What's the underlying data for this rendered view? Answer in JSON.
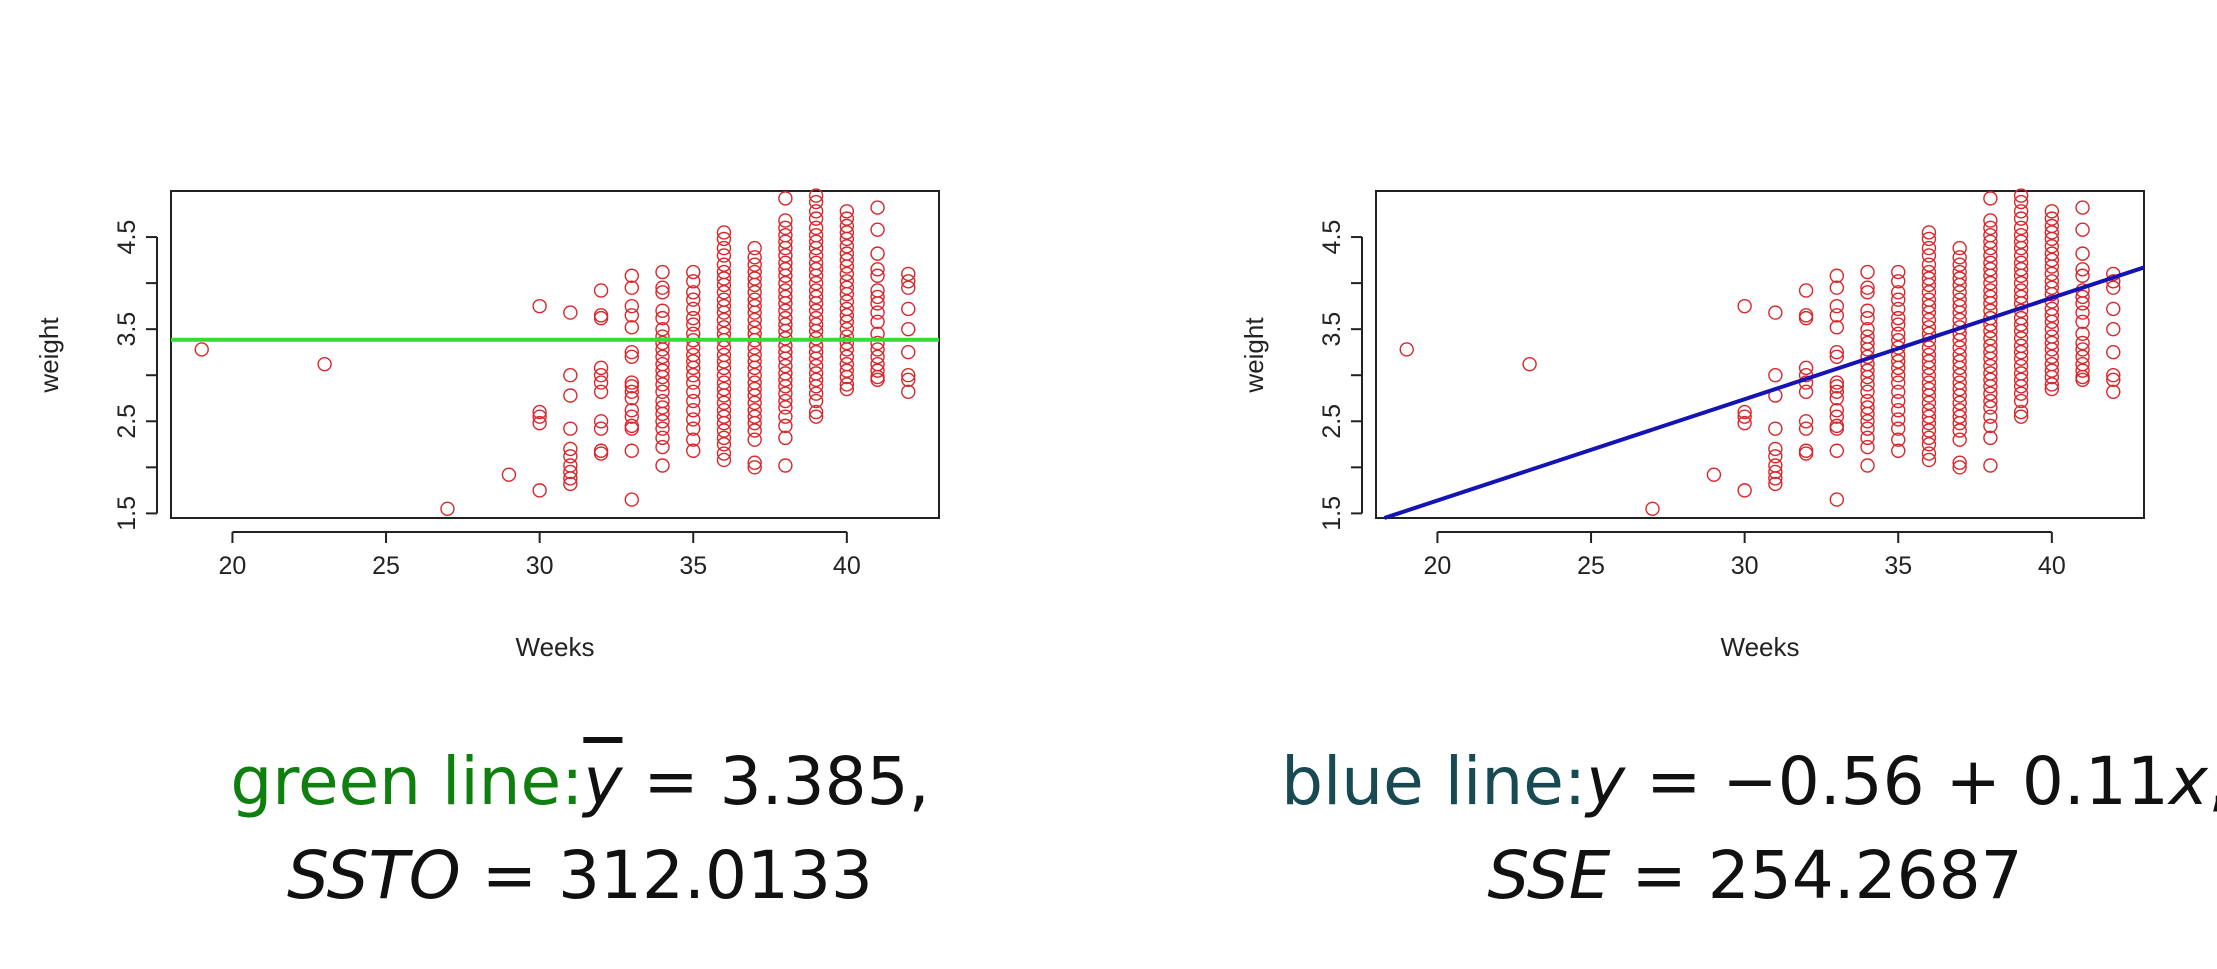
{
  "colors": {
    "points": "#d9262b",
    "mean_line": "#33dd33",
    "fit_line": "#1414b4",
    "axis": "#222222",
    "label_green": "#0f7f0f",
    "label_blue": "#174a52"
  },
  "chart_data": [
    {
      "type": "scatter",
      "title": "",
      "xlabel": "Weeks",
      "ylabel": "weight",
      "xlim": [
        18,
        43
      ],
      "ylim": [
        1.45,
        5.0
      ],
      "xticks": [
        "20",
        "25",
        "30",
        "35",
        "40"
      ],
      "yticks": [
        "1.5",
        "2.5",
        "3.5",
        "4.5"
      ],
      "minor_yticks": [
        2.0,
        3.0,
        4.0
      ],
      "grid": false,
      "overlay_line": {
        "kind": "horizontal",
        "y": 3.385,
        "color": "green"
      },
      "points_summary": "Birth weight vs gestation weeks; dense vertical strips at 36-41 weeks, isolated points at 19, 23, 27 weeks"
    },
    {
      "type": "scatter",
      "title": "",
      "xlabel": "Weeks",
      "ylabel": "weight",
      "xlim": [
        18,
        43
      ],
      "ylim": [
        1.45,
        5.0
      ],
      "xticks": [
        "20",
        "25",
        "30",
        "35",
        "40"
      ],
      "yticks": [
        "1.5",
        "2.5",
        "3.5",
        "4.5"
      ],
      "minor_yticks": [
        2.0,
        3.0,
        4.0
      ],
      "grid": false,
      "overlay_line": {
        "kind": "regression",
        "intercept": -0.56,
        "slope": 0.11,
        "color": "blue"
      },
      "points_summary": "Same data as left panel"
    }
  ],
  "points": [
    [
      19,
      3.28
    ],
    [
      23,
      3.12
    ],
    [
      27,
      1.55
    ],
    [
      29,
      1.92
    ],
    [
      30,
      3.75
    ],
    [
      30,
      2.6
    ],
    [
      30,
      2.55
    ],
    [
      30,
      2.48
    ],
    [
      30,
      1.75
    ],
    [
      31,
      3.68
    ],
    [
      31,
      3.0
    ],
    [
      31,
      2.78
    ],
    [
      31,
      2.42
    ],
    [
      31,
      2.2
    ],
    [
      31,
      2.12
    ],
    [
      31,
      2.02
    ],
    [
      31,
      1.95
    ],
    [
      31,
      1.88
    ],
    [
      31,
      1.82
    ],
    [
      32,
      3.92
    ],
    [
      32,
      3.65
    ],
    [
      32,
      3.62
    ],
    [
      32,
      3.08
    ],
    [
      32,
      3.0
    ],
    [
      32,
      2.92
    ],
    [
      32,
      2.82
    ],
    [
      32,
      2.5
    ],
    [
      32,
      2.42
    ],
    [
      32,
      2.18
    ],
    [
      32,
      2.15
    ],
    [
      33,
      4.08
    ],
    [
      33,
      3.95
    ],
    [
      33,
      3.75
    ],
    [
      33,
      3.65
    ],
    [
      33,
      3.52
    ],
    [
      33,
      3.25
    ],
    [
      33,
      3.2
    ],
    [
      33,
      2.92
    ],
    [
      33,
      2.88
    ],
    [
      33,
      2.82
    ],
    [
      33,
      2.75
    ],
    [
      33,
      2.62
    ],
    [
      33,
      2.55
    ],
    [
      33,
      2.45
    ],
    [
      33,
      2.42
    ],
    [
      33,
      2.18
    ],
    [
      33,
      1.65
    ],
    [
      34,
      4.12
    ],
    [
      34,
      3.95
    ],
    [
      34,
      3.9
    ],
    [
      34,
      3.7
    ],
    [
      34,
      3.62
    ],
    [
      34,
      3.5
    ],
    [
      34,
      3.42
    ],
    [
      34,
      3.35
    ],
    [
      34,
      3.28
    ],
    [
      34,
      3.2
    ],
    [
      34,
      3.12
    ],
    [
      34,
      3.05
    ],
    [
      34,
      2.98
    ],
    [
      34,
      2.9
    ],
    [
      34,
      2.82
    ],
    [
      34,
      2.72
    ],
    [
      34,
      2.65
    ],
    [
      34,
      2.58
    ],
    [
      34,
      2.5
    ],
    [
      34,
      2.42
    ],
    [
      34,
      2.32
    ],
    [
      34,
      2.22
    ],
    [
      34,
      2.02
    ],
    [
      35,
      4.12
    ],
    [
      35,
      4.02
    ],
    [
      35,
      3.9
    ],
    [
      35,
      3.82
    ],
    [
      35,
      3.72
    ],
    [
      35,
      3.62
    ],
    [
      35,
      3.55
    ],
    [
      35,
      3.45
    ],
    [
      35,
      3.38
    ],
    [
      35,
      3.3
    ],
    [
      35,
      3.22
    ],
    [
      35,
      3.15
    ],
    [
      35,
      3.08
    ],
    [
      35,
      3.0
    ],
    [
      35,
      2.92
    ],
    [
      35,
      2.82
    ],
    [
      35,
      2.72
    ],
    [
      35,
      2.62
    ],
    [
      35,
      2.52
    ],
    [
      35,
      2.42
    ],
    [
      35,
      2.3
    ],
    [
      35,
      2.18
    ],
    [
      36,
      4.55
    ],
    [
      36,
      4.48
    ],
    [
      36,
      4.38
    ],
    [
      36,
      4.3
    ],
    [
      36,
      4.2
    ],
    [
      36,
      4.12
    ],
    [
      36,
      4.05
    ],
    [
      36,
      3.98
    ],
    [
      36,
      3.9
    ],
    [
      36,
      3.82
    ],
    [
      36,
      3.75
    ],
    [
      36,
      3.68
    ],
    [
      36,
      3.6
    ],
    [
      36,
      3.52
    ],
    [
      36,
      3.45
    ],
    [
      36,
      3.38
    ],
    [
      36,
      3.3
    ],
    [
      36,
      3.22
    ],
    [
      36,
      3.15
    ],
    [
      36,
      3.08
    ],
    [
      36,
      3.0
    ],
    [
      36,
      2.92
    ],
    [
      36,
      2.85
    ],
    [
      36,
      2.78
    ],
    [
      36,
      2.7
    ],
    [
      36,
      2.62
    ],
    [
      36,
      2.55
    ],
    [
      36,
      2.48
    ],
    [
      36,
      2.4
    ],
    [
      36,
      2.32
    ],
    [
      36,
      2.25
    ],
    [
      36,
      2.15
    ],
    [
      36,
      2.08
    ],
    [
      37,
      4.38
    ],
    [
      37,
      4.28
    ],
    [
      37,
      4.2
    ],
    [
      37,
      4.12
    ],
    [
      37,
      4.05
    ],
    [
      37,
      3.98
    ],
    [
      37,
      3.9
    ],
    [
      37,
      3.82
    ],
    [
      37,
      3.75
    ],
    [
      37,
      3.68
    ],
    [
      37,
      3.6
    ],
    [
      37,
      3.52
    ],
    [
      37,
      3.45
    ],
    [
      37,
      3.38
    ],
    [
      37,
      3.3
    ],
    [
      37,
      3.22
    ],
    [
      37,
      3.15
    ],
    [
      37,
      3.08
    ],
    [
      37,
      3.0
    ],
    [
      37,
      2.92
    ],
    [
      37,
      2.85
    ],
    [
      37,
      2.78
    ],
    [
      37,
      2.7
    ],
    [
      37,
      2.62
    ],
    [
      37,
      2.55
    ],
    [
      37,
      2.48
    ],
    [
      37,
      2.4
    ],
    [
      37,
      2.3
    ],
    [
      37,
      2.05
    ],
    [
      37,
      2.0
    ],
    [
      38,
      4.92
    ],
    [
      38,
      4.68
    ],
    [
      38,
      4.6
    ],
    [
      38,
      4.52
    ],
    [
      38,
      4.45
    ],
    [
      38,
      4.38
    ],
    [
      38,
      4.3
    ],
    [
      38,
      4.22
    ],
    [
      38,
      4.15
    ],
    [
      38,
      4.08
    ],
    [
      38,
      4.0
    ],
    [
      38,
      3.92
    ],
    [
      38,
      3.85
    ],
    [
      38,
      3.78
    ],
    [
      38,
      3.7
    ],
    [
      38,
      3.62
    ],
    [
      38,
      3.55
    ],
    [
      38,
      3.48
    ],
    [
      38,
      3.4
    ],
    [
      38,
      3.32
    ],
    [
      38,
      3.25
    ],
    [
      38,
      3.18
    ],
    [
      38,
      3.1
    ],
    [
      38,
      3.02
    ],
    [
      38,
      2.95
    ],
    [
      38,
      2.88
    ],
    [
      38,
      2.8
    ],
    [
      38,
      2.72
    ],
    [
      38,
      2.65
    ],
    [
      38,
      2.55
    ],
    [
      38,
      2.45
    ],
    [
      38,
      2.32
    ],
    [
      38,
      2.02
    ],
    [
      39,
      4.95
    ],
    [
      39,
      4.88
    ],
    [
      39,
      4.78
    ],
    [
      39,
      4.7
    ],
    [
      39,
      4.6
    ],
    [
      39,
      4.52
    ],
    [
      39,
      4.45
    ],
    [
      39,
      4.38
    ],
    [
      39,
      4.3
    ],
    [
      39,
      4.22
    ],
    [
      39,
      4.15
    ],
    [
      39,
      4.08
    ],
    [
      39,
      4.0
    ],
    [
      39,
      3.92
    ],
    [
      39,
      3.85
    ],
    [
      39,
      3.78
    ],
    [
      39,
      3.7
    ],
    [
      39,
      3.62
    ],
    [
      39,
      3.55
    ],
    [
      39,
      3.48
    ],
    [
      39,
      3.4
    ],
    [
      39,
      3.32
    ],
    [
      39,
      3.25
    ],
    [
      39,
      3.18
    ],
    [
      39,
      3.1
    ],
    [
      39,
      3.02
    ],
    [
      39,
      2.95
    ],
    [
      39,
      2.88
    ],
    [
      39,
      2.8
    ],
    [
      39,
      2.72
    ],
    [
      39,
      2.6
    ],
    [
      39,
      2.55
    ],
    [
      40,
      4.78
    ],
    [
      40,
      4.7
    ],
    [
      40,
      4.62
    ],
    [
      40,
      4.55
    ],
    [
      40,
      4.48
    ],
    [
      40,
      4.4
    ],
    [
      40,
      4.32
    ],
    [
      40,
      4.25
    ],
    [
      40,
      4.18
    ],
    [
      40,
      4.1
    ],
    [
      40,
      4.02
    ],
    [
      40,
      3.95
    ],
    [
      40,
      3.88
    ],
    [
      40,
      3.8
    ],
    [
      40,
      3.72
    ],
    [
      40,
      3.65
    ],
    [
      40,
      3.58
    ],
    [
      40,
      3.5
    ],
    [
      40,
      3.42
    ],
    [
      40,
      3.35
    ],
    [
      40,
      3.28
    ],
    [
      40,
      3.2
    ],
    [
      40,
      3.12
    ],
    [
      40,
      3.05
    ],
    [
      40,
      2.98
    ],
    [
      40,
      2.9
    ],
    [
      40,
      2.85
    ],
    [
      41,
      4.82
    ],
    [
      41,
      4.58
    ],
    [
      41,
      4.32
    ],
    [
      41,
      4.15
    ],
    [
      41,
      4.08
    ],
    [
      41,
      3.92
    ],
    [
      41,
      3.85
    ],
    [
      41,
      3.78
    ],
    [
      41,
      3.68
    ],
    [
      41,
      3.58
    ],
    [
      41,
      3.45
    ],
    [
      41,
      3.35
    ],
    [
      41,
      3.28
    ],
    [
      41,
      3.2
    ],
    [
      41,
      3.12
    ],
    [
      41,
      3.05
    ],
    [
      41,
      2.98
    ],
    [
      41,
      2.95
    ],
    [
      42,
      4.1
    ],
    [
      42,
      4.02
    ],
    [
      42,
      3.95
    ],
    [
      42,
      3.72
    ],
    [
      42,
      3.5
    ],
    [
      42,
      3.25
    ],
    [
      42,
      3.0
    ],
    [
      42,
      2.95
    ],
    [
      42,
      2.82
    ]
  ],
  "captions": {
    "left": {
      "label": "green line:",
      "eq1_sym": "y",
      "eq1_rest": " = 3.385,",
      "eq2_sym": "SSTO",
      "eq2_rest": " = 312.0133"
    },
    "right": {
      "label": "blue line:",
      "eq1_sym": "y",
      "eq1_mid": " = −0.56 + 0.11",
      "eq1_sym2": "x",
      "eq1_end": ",",
      "eq2_sym": "SSE",
      "eq2_rest": " = 254.2687"
    }
  }
}
